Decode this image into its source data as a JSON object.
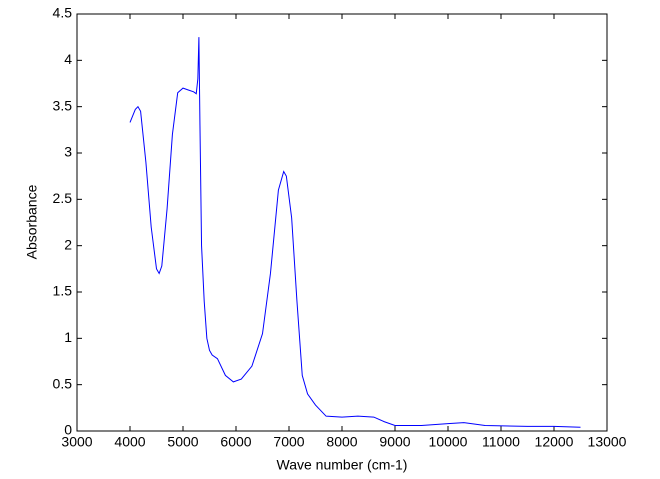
{
  "chart_data": {
    "type": "line",
    "xlabel": "Wave number (cm-1)",
    "ylabel": "Absorbance",
    "x": [
      4000,
      4050,
      4100,
      4150,
      4200,
      4300,
      4400,
      4500,
      4550,
      4600,
      4700,
      4800,
      4900,
      5000,
      5100,
      5200,
      5250,
      5280,
      5300,
      5320,
      5350,
      5400,
      5450,
      5500,
      5550,
      5650,
      5800,
      5950,
      6100,
      6300,
      6500,
      6650,
      6800,
      6900,
      6950,
      7050,
      7150,
      7250,
      7350,
      7500,
      7700,
      8000,
      8300,
      8600,
      8800,
      9000,
      9500,
      10000,
      10300,
      10700,
      11500,
      12000,
      12500
    ],
    "values": [
      3.33,
      3.4,
      3.47,
      3.5,
      3.45,
      2.9,
      2.2,
      1.75,
      1.7,
      1.78,
      2.4,
      3.2,
      3.65,
      3.7,
      3.68,
      3.66,
      3.64,
      3.8,
      4.25,
      3.3,
      2.0,
      1.4,
      1.0,
      0.87,
      0.82,
      0.78,
      0.6,
      0.53,
      0.56,
      0.7,
      1.05,
      1.7,
      2.6,
      2.8,
      2.75,
      2.3,
      1.4,
      0.6,
      0.4,
      0.28,
      0.16,
      0.15,
      0.16,
      0.15,
      0.1,
      0.06,
      0.06,
      0.08,
      0.09,
      0.06,
      0.05,
      0.05,
      0.04
    ],
    "color": "#0000ff",
    "xlim": [
      3000,
      13000
    ],
    "xticks": [
      3000,
      4000,
      5000,
      6000,
      7000,
      8000,
      9000,
      10000,
      11000,
      12000,
      13000
    ],
    "ylim": [
      0,
      4.5
    ],
    "yticks": [
      0,
      0.5,
      1,
      1.5,
      2,
      2.5,
      3,
      3.5,
      4,
      4.5
    ],
    "grid": false
  }
}
